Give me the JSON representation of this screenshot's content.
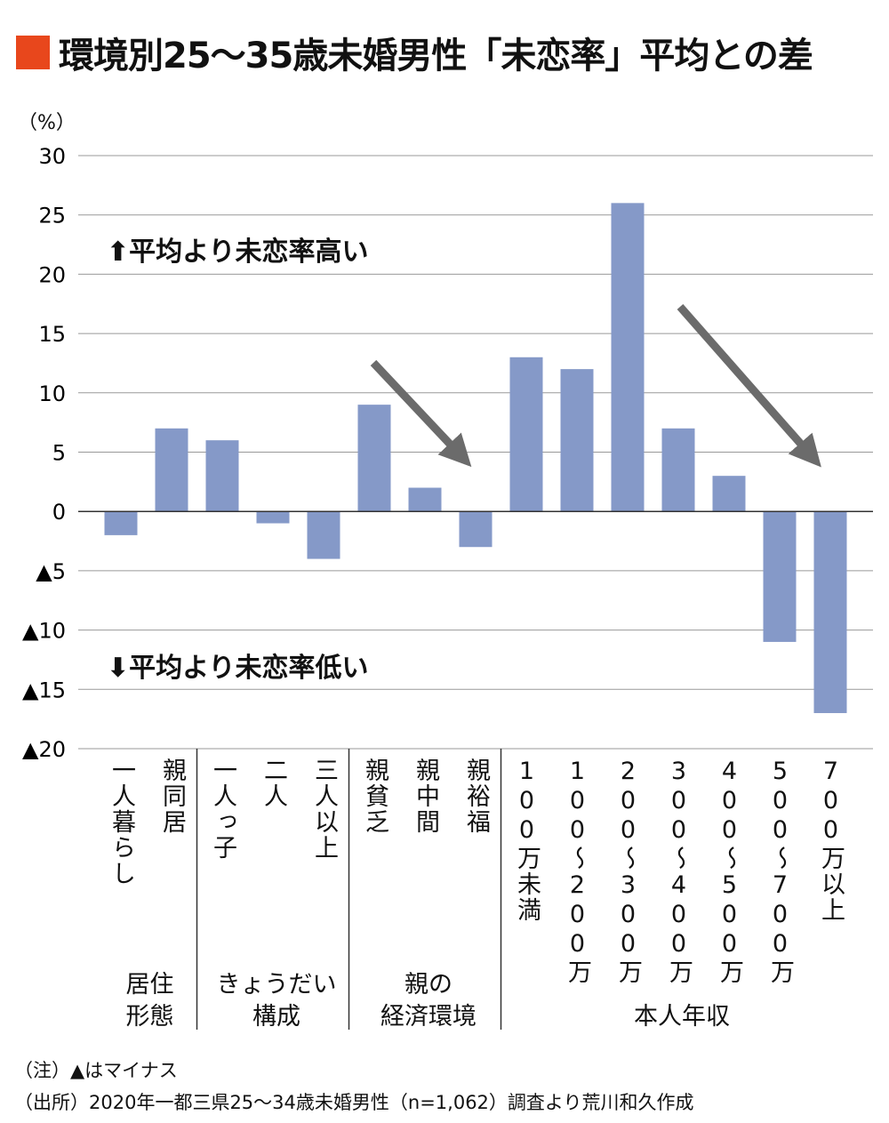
{
  "title": "環境別25～35歳未婚男性「未恋率」平均との差",
  "colors": {
    "title_square": "#e8471c",
    "bar": "#8599c8",
    "arrow": "#6b6b6b",
    "grid": "#999999"
  },
  "chart_data": {
    "type": "bar",
    "title": "環境別25～35歳未婚男性「未恋率」平均との差",
    "ylabel": "（%）",
    "ylim": [
      -20,
      30
    ],
    "yticks": [
      30,
      25,
      20,
      15,
      10,
      5,
      0,
      -5,
      -10,
      -15,
      -20
    ],
    "ytick_labels": [
      "30",
      "25",
      "20",
      "15",
      "10",
      "5",
      "0",
      "▲5",
      "▲10",
      "▲15",
      "▲20"
    ],
    "grid": true,
    "categories": [
      "一人暮らし",
      "親同居",
      "一人っ子",
      "二人",
      "三人以上",
      "親貧乏",
      "親中間",
      "親裕福",
      "100万未満",
      "100～200万",
      "200～300万",
      "300～400万",
      "400～500万",
      "500～700万",
      "700万以上"
    ],
    "values": [
      -2,
      7,
      6,
      -1,
      -4,
      9,
      2,
      -3,
      13,
      12,
      26,
      7,
      3,
      -11,
      -17
    ],
    "groups": [
      {
        "label_line1": "居住",
        "label_line2": "形態",
        "count": 2
      },
      {
        "label_line1": "きょうだい",
        "label_line2": "構成",
        "count": 3
      },
      {
        "label_line1": "親の",
        "label_line2": "経済環境",
        "count": 3
      },
      {
        "label_line1": "",
        "label_line2": "本人年収",
        "count": 7
      }
    ],
    "annotations": {
      "up": "⬆平均より未恋率高い",
      "down": "⬇平均より未恋率低い"
    }
  },
  "notes": {
    "note": "（注）▲はマイナス",
    "source": "（出所）2020年一都三県25～34歳未婚男性（n=1,062）調査より荒川和久作成"
  }
}
